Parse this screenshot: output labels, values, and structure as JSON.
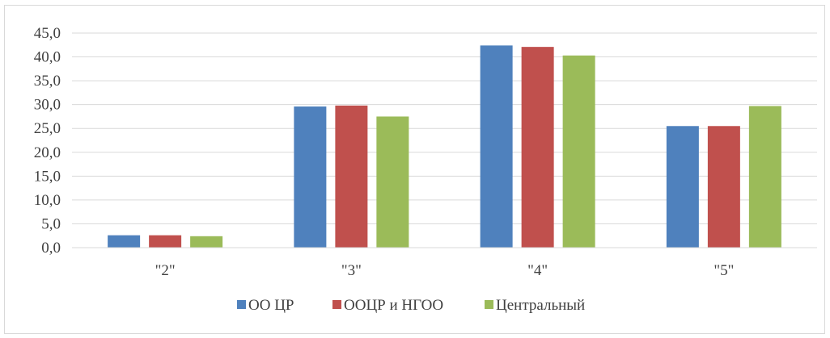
{
  "chart_data": {
    "type": "bar",
    "categories": [
      "\"2\"",
      "\"3\"",
      "\"4\"",
      "\"5\""
    ],
    "series": [
      {
        "name": "ОО ЦР",
        "color": "#4f81bd",
        "values": [
          2.6,
          29.6,
          42.4,
          25.5
        ]
      },
      {
        "name": "ООЦР и НГОО",
        "color": "#c0504d",
        "values": [
          2.6,
          29.8,
          42.1,
          25.5
        ]
      },
      {
        "name": "Центральный",
        "color": "#9bbb59",
        "values": [
          2.4,
          27.5,
          40.3,
          29.7
        ]
      }
    ],
    "ylim": [
      0,
      45
    ],
    "yticks": [
      "0,0",
      "5,0",
      "10,0",
      "15,0",
      "20,0",
      "25,0",
      "30,0",
      "35,0",
      "40,0",
      "45,0"
    ],
    "ytick_step": 5,
    "grid": true,
    "legend_position": "bottom"
  }
}
